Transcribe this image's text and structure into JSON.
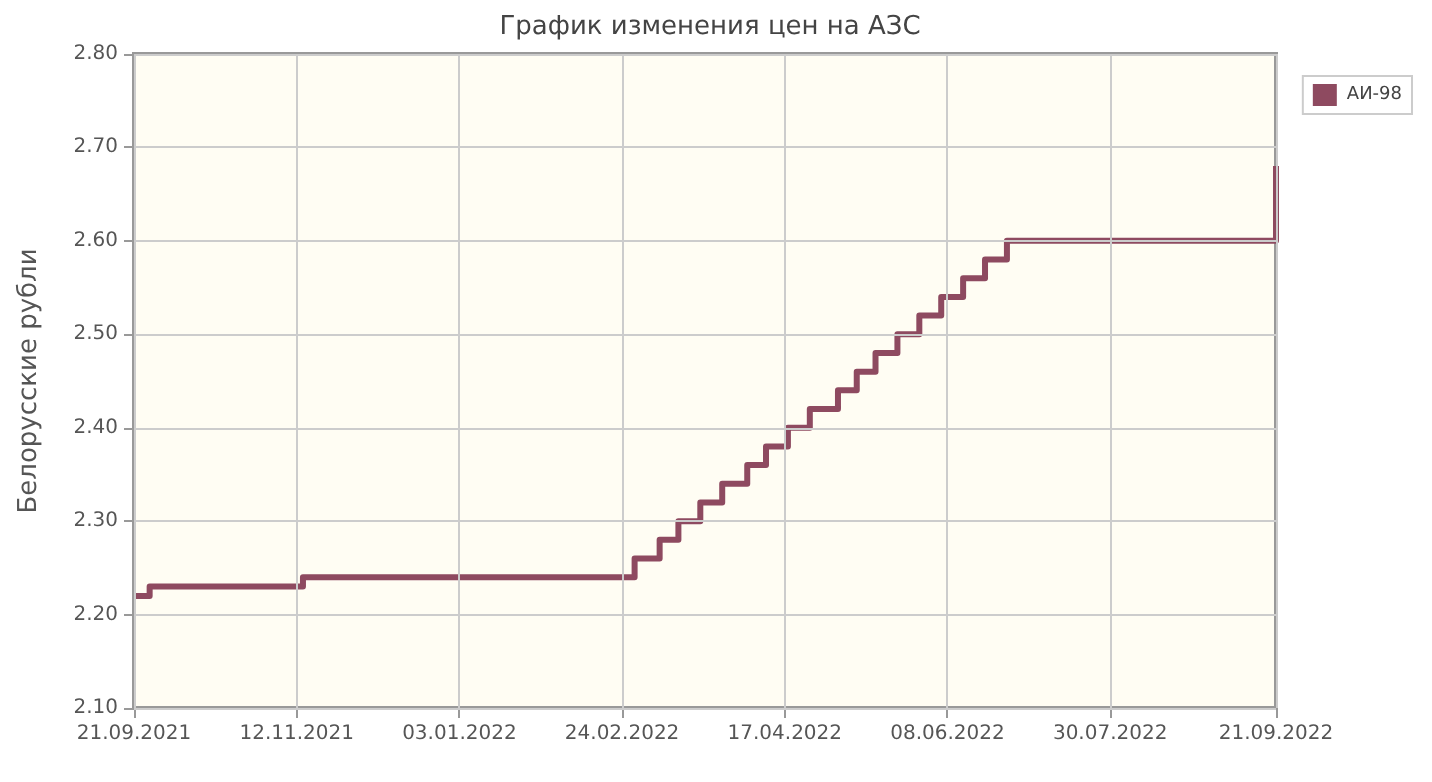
{
  "chart_data": {
    "type": "step",
    "title": "График изменения цен на АЗС",
    "ylabel": "Белорусские рубли",
    "x": [
      "2021-09-21",
      "2021-09-26",
      "2021-11-14",
      "2022-02-28",
      "2022-03-08",
      "2022-03-14",
      "2022-03-21",
      "2022-03-28",
      "2022-04-05",
      "2022-04-11",
      "2022-04-18",
      "2022-04-25",
      "2022-05-04",
      "2022-05-10",
      "2022-05-16",
      "2022-05-23",
      "2022-05-30",
      "2022-06-06",
      "2022-06-13",
      "2022-06-20",
      "2022-06-27",
      "2022-09-21"
    ],
    "series": [
      {
        "name": "АИ-98",
        "color": "#8e4a60",
        "values": [
          2.22,
          2.23,
          2.24,
          2.26,
          2.28,
          2.3,
          2.32,
          2.34,
          2.36,
          2.38,
          2.4,
          2.42,
          2.44,
          2.46,
          2.48,
          2.5,
          2.52,
          2.54,
          2.56,
          2.58,
          2.6,
          2.68
        ]
      }
    ],
    "xlim": [
      "2021-09-21",
      "2022-09-21"
    ],
    "xticks": [
      {
        "value": "2021-09-21",
        "label": "21.09.2021"
      },
      {
        "value": "2021-11-12",
        "label": "12.11.2021"
      },
      {
        "value": "2022-01-03",
        "label": "03.01.2022"
      },
      {
        "value": "2022-02-24",
        "label": "24.02.2022"
      },
      {
        "value": "2022-04-17",
        "label": "17.04.2022"
      },
      {
        "value": "2022-06-08",
        "label": "08.06.2022"
      },
      {
        "value": "2022-07-30",
        "label": "30.07.2022"
      },
      {
        "value": "2022-09-21",
        "label": "21.09.2022"
      }
    ],
    "ylim": [
      2.1,
      2.8
    ],
    "yticks": [
      {
        "value": 2.1,
        "label": "2.10"
      },
      {
        "value": 2.2,
        "label": "2.20"
      },
      {
        "value": 2.3,
        "label": "2.30"
      },
      {
        "value": 2.4,
        "label": "2.40"
      },
      {
        "value": 2.5,
        "label": "2.50"
      },
      {
        "value": 2.6,
        "label": "2.60"
      },
      {
        "value": 2.7,
        "label": "2.70"
      },
      {
        "value": 2.8,
        "label": "2.80"
      }
    ],
    "grid": true,
    "legend": "top right",
    "line_style": "solid",
    "marker": "none"
  }
}
